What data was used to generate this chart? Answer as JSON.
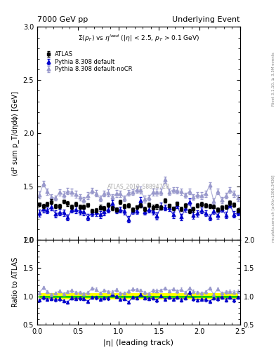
{
  "title_left": "7000 GeV pp",
  "title_right": "Underlying Event",
  "annotation": "\\Sigma(p_T) vs \\eta^{lead} (|\\eta| < 2.5, p_T > 0.1 GeV)",
  "watermark": "ATLAS_2010_S8894728",
  "right_label_top": "Rivet 3.1.10, ≥ 3.5M events",
  "right_label_bottom": "mcplots.cern.ch [arXiv:1306.3436]",
  "ylabel_main": "⟨d² sum p_T/dηdϕ⟩ [GeV]",
  "ylabel_ratio": "Ratio to ATLAS",
  "xlabel": "|η| (leading track)",
  "xlim": [
    0,
    2.5
  ],
  "ylim_main": [
    1.0,
    3.0
  ],
  "ylim_ratio": [
    0.5,
    2.0
  ],
  "yticks_main": [
    1.0,
    1.5,
    2.0,
    2.5,
    3.0
  ],
  "yticks_ratio": [
    0.5,
    1.0,
    1.5,
    2.0
  ],
  "n_points": 50,
  "atlas_color": "#000000",
  "pythia_default_color": "#0000cc",
  "pythia_nocr_color": "#9999cc",
  "green_band_color": "#00cc00",
  "yellow_band_color": "#ffff00",
  "atlas_marker": "s",
  "pythia_marker": "^",
  "legend_entries": [
    "ATLAS",
    "Pythia 8.308 default",
    "Pythia 8.308 default-noCR"
  ]
}
